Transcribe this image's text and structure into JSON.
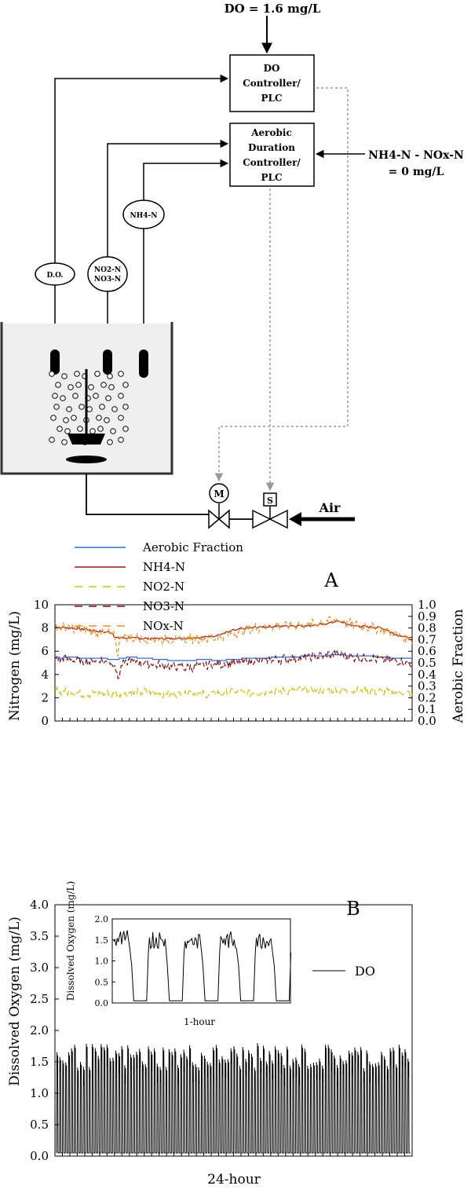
{
  "diagram": {
    "do_setpoint": "DO = 1.6 mg/L",
    "do_controller": [
      "DO",
      "Controller/",
      "PLC"
    ],
    "aer_controller": [
      "Aerobic",
      "Duration",
      "Controller/",
      "PLC"
    ],
    "nh4_setpoint": [
      "NH4-N - NOx-N",
      "= 0 mg/L"
    ],
    "sensor_do": "D.O.",
    "sensor_nox": [
      "NO2-N",
      "NO3-N"
    ],
    "sensor_nh4": "NH4-N",
    "valve_m": "M",
    "valve_s": "S",
    "air": "Air"
  },
  "chart_data": [
    {
      "type": "line",
      "panel_label": "A",
      "x_range": [
        0,
        24
      ],
      "ylabel": "Nitrogen (mg/L)",
      "y2label": "Aerobic Fraction",
      "ylim": [
        0,
        10
      ],
      "y2lim": [
        0,
        1.0
      ],
      "yticks": [
        "0",
        "2",
        "4",
        "6",
        "8",
        "10"
      ],
      "y2ticks": [
        "0.0",
        "0.1",
        "0.2",
        "0.3",
        "0.4",
        "0.5",
        "0.6",
        "0.7",
        "0.8",
        "0.9",
        "1.0"
      ],
      "legend": [
        "Aerobic Fraction",
        "NH4-N",
        "NO2-N",
        "NO3-N",
        "NOx-N"
      ],
      "legend_position": "top-left",
      "series": [
        {
          "name": "Aerobic Fraction",
          "axis": "right",
          "color": "#2f6fd0",
          "dash": "",
          "noise": 0,
          "x": [
            0,
            1,
            2,
            3,
            4,
            5,
            6,
            7,
            8,
            9,
            10,
            11,
            12,
            13,
            14,
            15,
            16,
            17,
            18,
            19,
            20,
            21,
            22,
            23,
            24
          ],
          "values": [
            0.54,
            0.55,
            0.54,
            0.54,
            0.53,
            0.55,
            0.54,
            0.53,
            0.52,
            0.52,
            0.53,
            0.52,
            0.53,
            0.54,
            0.54,
            0.55,
            0.55,
            0.56,
            0.56,
            0.57,
            0.56,
            0.56,
            0.55,
            0.54,
            0.54
          ]
        },
        {
          "name": "NH4-N",
          "axis": "left",
          "color": "#9b1b1b",
          "dash": "",
          "noise": 0.08,
          "x": [
            0,
            1,
            2,
            3,
            3.9,
            4,
            5,
            6,
            7,
            8,
            9,
            10,
            11,
            11.5,
            12,
            13,
            14,
            15,
            16,
            17,
            18,
            19,
            20,
            21,
            22,
            23,
            24
          ],
          "values": [
            8.1,
            8.0,
            7.9,
            7.7,
            7.6,
            7.15,
            7.15,
            7.1,
            7.1,
            7.1,
            7.15,
            7.2,
            7.4,
            7.6,
            7.8,
            8.0,
            8.1,
            8.15,
            8.2,
            8.2,
            8.3,
            8.6,
            8.2,
            8.1,
            8.0,
            7.4,
            7.1
          ]
        },
        {
          "name": "NO2-N",
          "axis": "left",
          "color": "#c8c21a",
          "dash": "9,5",
          "noise": 0.28,
          "x": [
            0,
            1,
            2,
            3,
            4,
            5,
            6,
            7,
            8,
            9,
            10,
            11,
            12,
            13,
            14,
            15,
            16,
            17,
            18,
            19,
            20,
            21,
            22,
            23,
            24
          ],
          "values": [
            2.6,
            2.5,
            2.3,
            2.4,
            2.3,
            2.4,
            2.5,
            2.4,
            2.3,
            2.5,
            2.3,
            2.4,
            2.5,
            2.4,
            2.5,
            2.6,
            2.6,
            2.7,
            2.6,
            2.7,
            2.6,
            2.6,
            2.5,
            2.5,
            2.3
          ]
        },
        {
          "name": "NO3-N",
          "axis": "left",
          "color": "#7a1515",
          "dash": "6,3",
          "noise": 0.32,
          "x": [
            0,
            1,
            2,
            3,
            4,
            4.2,
            4.5,
            5,
            6,
            7,
            8,
            9,
            10,
            11,
            12,
            13,
            14,
            15,
            16,
            17,
            18,
            19,
            20,
            21,
            22,
            23,
            24
          ],
          "values": [
            5.4,
            5.3,
            5.1,
            5.2,
            5.0,
            3.6,
            4.8,
            5.2,
            5.0,
            4.8,
            4.7,
            4.6,
            4.8,
            4.9,
            5.0,
            5.1,
            5.2,
            5.3,
            5.4,
            5.5,
            5.6,
            5.8,
            5.5,
            5.4,
            5.3,
            5.2,
            4.9
          ]
        },
        {
          "name": "NOx-N",
          "axis": "left",
          "color": "#e0922a",
          "dash": "5,3",
          "noise": 0.35,
          "x": [
            0,
            1,
            2,
            3,
            4,
            4.2,
            4.4,
            5,
            6,
            7,
            8,
            9,
            10,
            11,
            12,
            13,
            14,
            15,
            16,
            17,
            18,
            19,
            20,
            21,
            22,
            23,
            24
          ],
          "values": [
            8.1,
            8.0,
            7.8,
            7.6,
            7.4,
            5.6,
            7.3,
            7.2,
            7.1,
            7.0,
            7.0,
            7.1,
            7.1,
            7.2,
            7.6,
            7.9,
            8.1,
            8.2,
            8.2,
            8.3,
            8.5,
            8.7,
            8.3,
            8.1,
            7.9,
            7.4,
            7.0
          ]
        }
      ]
    },
    {
      "type": "line",
      "panel_label": "B",
      "ylabel": "Dissolved Oxygen (mg/L)",
      "xlabel": "24-hour",
      "ylim": [
        0,
        4.0
      ],
      "yticks": [
        "0.0",
        "0.5",
        "1.0",
        "1.5",
        "2.0",
        "2.5",
        "3.0",
        "3.5",
        "4.0"
      ],
      "legend": [
        "DO"
      ],
      "series": [
        {
          "name": "DO",
          "color": "#000000",
          "cycles": 120,
          "high": [
            1.4,
            1.8
          ],
          "low": 0.05
        }
      ],
      "inset": {
        "ylabel": "Dissolved Oxygen (mg/L)",
        "xlabel": "1-hour",
        "ylim": [
          0,
          2.0
        ],
        "yticks": [
          "0.0",
          "0.5",
          "1.0",
          "1.5",
          "2.0"
        ],
        "cycles": 5,
        "high": [
          1.3,
          1.8
        ],
        "low": 0.05
      }
    }
  ]
}
